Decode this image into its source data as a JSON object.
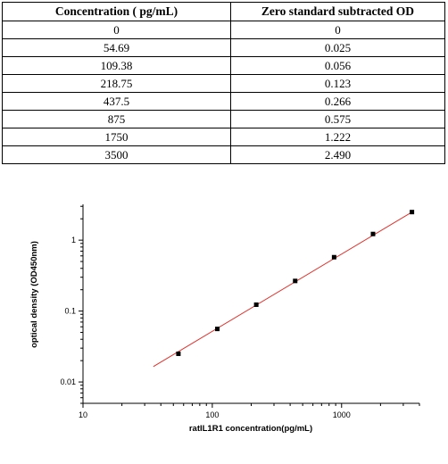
{
  "table": {
    "headers": [
      "Concentration ( pg/mL)",
      "Zero standard subtracted OD"
    ],
    "rows": [
      [
        "0",
        "0"
      ],
      [
        "54.69",
        "0.025"
      ],
      [
        "109.38",
        "0.056"
      ],
      [
        "218.75",
        "0.123"
      ],
      [
        "437.5",
        "0.266"
      ],
      [
        "875",
        "0.575"
      ],
      [
        "1750",
        "1.222"
      ],
      [
        "3500",
        "2.490"
      ]
    ]
  },
  "chart_data": {
    "type": "scatter",
    "xlabel": "ratIL1R1  concentration(pg/mL)",
    "ylabel": "optical density (OD450nm)",
    "x_scale": "log",
    "y_scale": "log",
    "xlim": [
      10,
      4000
    ],
    "ylim": [
      0.005,
      3.2
    ],
    "x_ticks": [
      {
        "value": 10,
        "label": "10"
      },
      {
        "value": 100,
        "label": "100"
      },
      {
        "value": 1000,
        "label": "1000"
      }
    ],
    "y_ticks": [
      {
        "value": 0.01,
        "label": "0.01"
      },
      {
        "value": 0.1,
        "label": "0.1"
      },
      {
        "value": 1,
        "label": "1"
      }
    ],
    "points": [
      {
        "x": 54.69,
        "y": 0.025
      },
      {
        "x": 109.38,
        "y": 0.056
      },
      {
        "x": 218.75,
        "y": 0.123
      },
      {
        "x": 437.5,
        "y": 0.266
      },
      {
        "x": 875,
        "y": 0.575
      },
      {
        "x": 1750,
        "y": 1.222
      },
      {
        "x": 3500,
        "y": 2.49
      }
    ],
    "fit_line": {
      "x": [
        35,
        3500
      ],
      "y": [
        0.0165,
        2.49
      ],
      "color": "#e0302a"
    },
    "marker_color": "#000000",
    "grid": false
  }
}
